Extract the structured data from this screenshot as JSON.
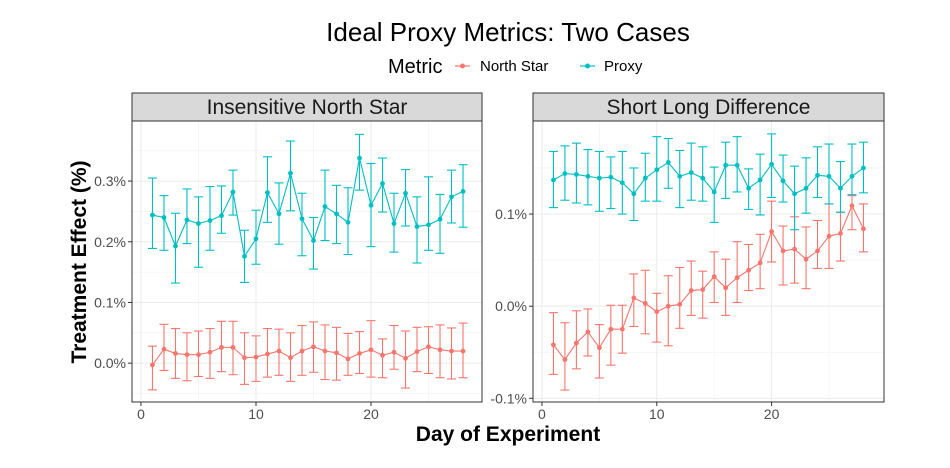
{
  "chart_data": {
    "type": "line",
    "title": "Ideal Proxy Metrics: Two Cases",
    "xlabel": "Day of Experiment",
    "ylabel": "Treatment Effect (%)",
    "grid": true,
    "legend": {
      "title": "Metric",
      "placement": "top",
      "entries": [
        "North Star",
        "Proxy"
      ]
    },
    "colors": {
      "North Star": "#F8766D",
      "Proxy": "#00BFC4"
    },
    "panels": [
      {
        "title": "Insensitive North Star",
        "xlim": [
          -0.78,
          29.65
        ],
        "ylim": [
          -0.064,
          0.399
        ],
        "xticks": [
          0,
          10,
          20
        ],
        "xtick_labels": [
          "0",
          "10",
          "20"
        ],
        "yticks": [
          0,
          0.1,
          0.2,
          0.3
        ],
        "ytick_labels": [
          "0.0%",
          "0.1%",
          "0.2%",
          "0.3%"
        ],
        "series": [
          {
            "name": "North Star",
            "x": [
              1,
              2,
              3,
              4,
              5,
              6,
              7,
              8,
              9,
              10,
              11,
              12,
              13,
              14,
              15,
              16,
              17,
              18,
              19,
              20,
              21,
              22,
              23,
              24,
              25,
              26,
              27,
              28
            ],
            "y": [
              -0.003,
              0.023,
              0.016,
              0.014,
              0.014,
              0.018,
              0.026,
              0.026,
              0.009,
              0.01,
              0.015,
              0.02,
              0.009,
              0.02,
              0.027,
              0.02,
              0.017,
              0.007,
              0.016,
              0.022,
              0.013,
              0.018,
              0.008,
              0.019,
              0.027,
              0.022,
              0.02,
              0.02
            ],
            "lower": [
              -0.044,
              -0.012,
              -0.025,
              -0.029,
              -0.022,
              -0.025,
              -0.014,
              -0.019,
              -0.035,
              -0.03,
              -0.023,
              -0.02,
              -0.03,
              -0.02,
              -0.015,
              -0.027,
              -0.028,
              -0.02,
              -0.017,
              -0.023,
              -0.024,
              -0.01,
              -0.041,
              -0.014,
              -0.017,
              -0.024,
              -0.026,
              -0.024
            ],
            "upper": [
              0.028,
              0.064,
              0.057,
              0.05,
              0.053,
              0.057,
              0.069,
              0.069,
              0.05,
              0.045,
              0.057,
              0.056,
              0.05,
              0.062,
              0.068,
              0.063,
              0.059,
              0.049,
              0.052,
              0.07,
              0.04,
              0.062,
              0.053,
              0.059,
              0.06,
              0.063,
              0.058,
              0.066
            ]
          },
          {
            "name": "Proxy",
            "x": [
              1,
              2,
              3,
              4,
              5,
              6,
              7,
              8,
              9,
              10,
              11,
              12,
              13,
              14,
              15,
              16,
              17,
              18,
              19,
              20,
              21,
              22,
              23,
              24,
              25,
              26,
              27,
              28
            ],
            "y": [
              0.244,
              0.24,
              0.193,
              0.236,
              0.23,
              0.235,
              0.243,
              0.282,
              0.176,
              0.205,
              0.281,
              0.246,
              0.313,
              0.238,
              0.202,
              0.258,
              0.246,
              0.232,
              0.338,
              0.26,
              0.296,
              0.23,
              0.28,
              0.225,
              0.228,
              0.237,
              0.274,
              0.283
            ],
            "lower": [
              0.189,
              0.186,
              0.132,
              0.197,
              0.158,
              0.186,
              0.214,
              0.244,
              0.133,
              0.163,
              0.232,
              0.196,
              0.251,
              0.177,
              0.155,
              0.202,
              0.197,
              0.179,
              0.285,
              0.192,
              0.249,
              0.183,
              0.226,
              0.165,
              0.186,
              0.181,
              0.231,
              0.224
            ],
            "upper": [
              0.305,
              0.276,
              0.247,
              0.287,
              0.274,
              0.291,
              0.292,
              0.318,
              0.219,
              0.252,
              0.34,
              0.297,
              0.366,
              0.28,
              0.24,
              0.318,
              0.293,
              0.289,
              0.377,
              0.329,
              0.338,
              0.28,
              0.319,
              0.274,
              0.307,
              0.278,
              0.318,
              0.327
            ]
          }
        ]
      },
      {
        "title": "Short Long Difference",
        "xlim": [
          -0.78,
          29.79
        ],
        "ylim": [
          -0.104,
          0.201
        ],
        "xticks": [
          0,
          10,
          20
        ],
        "xtick_labels": [
          "0",
          "10",
          "20"
        ],
        "yticks": [
          -0.1,
          0,
          0.1
        ],
        "ytick_labels": [
          "-0.1%",
          "0.0%",
          "0.1%"
        ],
        "series": [
          {
            "name": "North Star",
            "x": [
              1,
              2,
              3,
              4,
              5,
              6,
              7,
              8,
              9,
              10,
              11,
              12,
              13,
              14,
              15,
              16,
              17,
              18,
              19,
              20,
              21,
              22,
              23,
              24,
              25,
              26,
              27,
              28
            ],
            "y": [
              -0.042,
              -0.058,
              -0.04,
              -0.028,
              -0.045,
              -0.025,
              -0.025,
              0.009,
              0.003,
              -0.006,
              0.0,
              0.002,
              0.017,
              0.018,
              0.032,
              0.02,
              0.031,
              0.039,
              0.047,
              0.081,
              0.06,
              0.062,
              0.051,
              0.06,
              0.076,
              0.079,
              0.109,
              0.084
            ],
            "lower": [
              -0.074,
              -0.091,
              -0.068,
              -0.054,
              -0.078,
              -0.064,
              -0.051,
              -0.022,
              -0.03,
              -0.039,
              -0.043,
              -0.024,
              -0.01,
              -0.013,
              0.004,
              -0.01,
              0.004,
              0.017,
              0.019,
              0.048,
              0.023,
              0.025,
              0.019,
              0.041,
              0.041,
              0.049,
              0.083,
              0.059
            ],
            "upper": [
              -0.007,
              -0.018,
              -0.005,
              -0.003,
              -0.02,
              0.001,
              0.001,
              0.035,
              0.039,
              0.014,
              0.033,
              0.042,
              0.049,
              0.038,
              0.059,
              0.051,
              0.07,
              0.067,
              0.078,
              0.114,
              0.087,
              0.097,
              0.086,
              0.093,
              0.111,
              0.102,
              0.12,
              0.111
            ]
          },
          {
            "name": "Proxy",
            "x": [
              1,
              2,
              3,
              4,
              5,
              6,
              7,
              8,
              9,
              10,
              11,
              12,
              13,
              14,
              15,
              16,
              17,
              18,
              19,
              20,
              21,
              22,
              23,
              24,
              25,
              26,
              27,
              28
            ],
            "y": [
              0.137,
              0.144,
              0.143,
              0.141,
              0.139,
              0.14,
              0.134,
              0.122,
              0.139,
              0.148,
              0.156,
              0.141,
              0.145,
              0.139,
              0.124,
              0.153,
              0.153,
              0.128,
              0.137,
              0.154,
              0.136,
              0.122,
              0.128,
              0.142,
              0.141,
              0.128,
              0.141,
              0.15
            ],
            "lower": [
              0.107,
              0.115,
              0.112,
              0.11,
              0.103,
              0.106,
              0.1,
              0.093,
              0.114,
              0.114,
              0.128,
              0.107,
              0.115,
              0.114,
              0.091,
              0.117,
              0.124,
              0.105,
              0.099,
              0.118,
              0.113,
              0.083,
              0.101,
              0.118,
              0.111,
              0.102,
              0.121,
              0.123
            ],
            "upper": [
              0.168,
              0.174,
              0.177,
              0.17,
              0.168,
              0.162,
              0.168,
              0.15,
              0.166,
              0.184,
              0.182,
              0.169,
              0.177,
              0.173,
              0.151,
              0.178,
              0.184,
              0.149,
              0.165,
              0.187,
              0.164,
              0.152,
              0.161,
              0.173,
              0.176,
              0.157,
              0.176,
              0.178
            ]
          }
        ]
      }
    ]
  }
}
